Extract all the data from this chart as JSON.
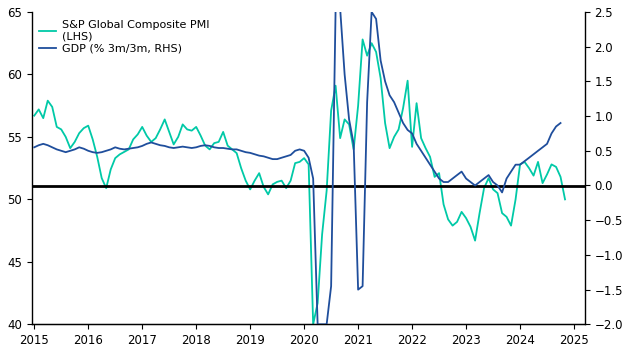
{
  "pmi_color": "#00C9A7",
  "gdp_color": "#1F4E9C",
  "hline_color": "#000000",
  "hline_y_lhs": 51.1,
  "lhs_ylim": [
    40,
    65
  ],
  "rhs_ylim": [
    -2.0,
    2.5
  ],
  "lhs_yticks": [
    40,
    45,
    50,
    55,
    60,
    65
  ],
  "rhs_yticks": [
    -2.0,
    -1.5,
    -1.0,
    -0.5,
    0.0,
    0.5,
    1.0,
    1.5,
    2.0,
    2.5
  ],
  "xlim_start": 2014.95,
  "xlim_end": 2025.2,
  "legend_pmi": "S&P Global Composite PMI\n(LHS)",
  "legend_gdp": "GDP (% 3m/3m, RHS)",
  "pmi_dates": [
    2015.0,
    2015.083,
    2015.167,
    2015.25,
    2015.333,
    2015.417,
    2015.5,
    2015.583,
    2015.667,
    2015.75,
    2015.833,
    2015.917,
    2016.0,
    2016.083,
    2016.167,
    2016.25,
    2016.333,
    2016.417,
    2016.5,
    2016.583,
    2016.667,
    2016.75,
    2016.833,
    2016.917,
    2017.0,
    2017.083,
    2017.167,
    2017.25,
    2017.333,
    2017.417,
    2017.5,
    2017.583,
    2017.667,
    2017.75,
    2017.833,
    2017.917,
    2018.0,
    2018.083,
    2018.167,
    2018.25,
    2018.333,
    2018.417,
    2018.5,
    2018.583,
    2018.667,
    2018.75,
    2018.833,
    2018.917,
    2019.0,
    2019.083,
    2019.167,
    2019.25,
    2019.333,
    2019.417,
    2019.5,
    2019.583,
    2019.667,
    2019.75,
    2019.833,
    2019.917,
    2020.0,
    2020.083,
    2020.167,
    2020.25,
    2020.333,
    2020.417,
    2020.5,
    2020.583,
    2020.667,
    2020.75,
    2020.833,
    2020.917,
    2021.0,
    2021.083,
    2021.167,
    2021.25,
    2021.333,
    2021.417,
    2021.5,
    2021.583,
    2021.667,
    2021.75,
    2021.833,
    2021.917,
    2022.0,
    2022.083,
    2022.167,
    2022.25,
    2022.333,
    2022.417,
    2022.5,
    2022.583,
    2022.667,
    2022.75,
    2022.833,
    2022.917,
    2023.0,
    2023.083,
    2023.167,
    2023.25,
    2023.333,
    2023.417,
    2023.5,
    2023.583,
    2023.667,
    2023.75,
    2023.833,
    2023.917,
    2024.0,
    2024.083,
    2024.167,
    2024.25,
    2024.333,
    2024.417,
    2024.5,
    2024.583,
    2024.667,
    2024.75,
    2024.833
  ],
  "pmi_values": [
    56.7,
    57.2,
    56.5,
    57.9,
    57.4,
    55.8,
    55.6,
    55.0,
    54.1,
    54.6,
    55.3,
    55.7,
    55.9,
    54.8,
    53.4,
    51.7,
    50.9,
    52.4,
    53.3,
    53.6,
    53.8,
    54.0,
    54.8,
    55.2,
    55.8,
    55.1,
    54.6,
    54.9,
    55.6,
    56.4,
    55.4,
    54.4,
    55.0,
    56.0,
    55.6,
    55.5,
    55.8,
    55.1,
    54.3,
    54.0,
    54.5,
    54.6,
    55.4,
    54.3,
    54.0,
    53.7,
    52.5,
    51.5,
    50.8,
    51.5,
    52.1,
    51.0,
    50.4,
    51.2,
    51.4,
    51.5,
    50.9,
    51.5,
    52.9,
    53.0,
    53.3,
    52.8,
    40.0,
    41.7,
    47.2,
    50.7,
    57.1,
    59.1,
    54.9,
    56.4,
    56.0,
    54.0,
    57.5,
    62.8,
    61.5,
    62.5,
    61.8,
    59.7,
    56.1,
    54.1,
    55.0,
    55.6,
    57.3,
    59.5,
    54.2,
    57.7,
    54.9,
    54.1,
    53.4,
    51.8,
    52.1,
    49.6,
    48.4,
    47.9,
    48.2,
    49.0,
    48.5,
    47.8,
    46.7,
    48.9,
    50.9,
    51.7,
    50.8,
    50.5,
    48.9,
    48.6,
    47.9,
    50.0,
    52.8,
    53.0,
    52.5,
    51.9,
    53.0,
    51.3,
    52.0,
    52.8,
    52.6,
    51.8,
    50.0
  ],
  "gdp_dates": [
    2015.0,
    2015.083,
    2015.167,
    2015.25,
    2015.333,
    2015.417,
    2015.5,
    2015.583,
    2015.667,
    2015.75,
    2015.833,
    2015.917,
    2016.0,
    2016.083,
    2016.167,
    2016.25,
    2016.333,
    2016.417,
    2016.5,
    2016.583,
    2016.667,
    2016.75,
    2016.833,
    2016.917,
    2017.0,
    2017.083,
    2017.167,
    2017.25,
    2017.333,
    2017.417,
    2017.5,
    2017.583,
    2017.667,
    2017.75,
    2017.833,
    2017.917,
    2018.0,
    2018.083,
    2018.167,
    2018.25,
    2018.333,
    2018.417,
    2018.5,
    2018.583,
    2018.667,
    2018.75,
    2018.833,
    2018.917,
    2019.0,
    2019.083,
    2019.167,
    2019.25,
    2019.333,
    2019.417,
    2019.5,
    2019.583,
    2019.667,
    2019.75,
    2019.833,
    2019.917,
    2020.0,
    2020.083,
    2020.167,
    2020.25,
    2020.333,
    2020.417,
    2020.5,
    2020.583,
    2020.667,
    2020.75,
    2020.833,
    2020.917,
    2021.0,
    2021.083,
    2021.167,
    2021.25,
    2021.333,
    2021.417,
    2021.5,
    2021.583,
    2021.667,
    2021.75,
    2021.833,
    2021.917,
    2022.0,
    2022.083,
    2022.167,
    2022.25,
    2022.333,
    2022.417,
    2022.5,
    2022.583,
    2022.667,
    2022.75,
    2022.833,
    2022.917,
    2023.0,
    2023.083,
    2023.167,
    2023.25,
    2023.333,
    2023.417,
    2023.5,
    2023.583,
    2023.667,
    2023.75,
    2023.833,
    2023.917,
    2024.0,
    2024.083,
    2024.167,
    2024.25,
    2024.333,
    2024.417,
    2024.5,
    2024.583,
    2024.667,
    2024.75
  ],
  "gdp_values": [
    0.55,
    0.58,
    0.6,
    0.58,
    0.55,
    0.52,
    0.5,
    0.48,
    0.5,
    0.52,
    0.55,
    0.53,
    0.5,
    0.48,
    0.47,
    0.48,
    0.5,
    0.52,
    0.55,
    0.53,
    0.52,
    0.53,
    0.54,
    0.55,
    0.57,
    0.6,
    0.62,
    0.6,
    0.58,
    0.57,
    0.55,
    0.54,
    0.55,
    0.56,
    0.55,
    0.54,
    0.55,
    0.57,
    0.58,
    0.57,
    0.55,
    0.54,
    0.54,
    0.53,
    0.52,
    0.52,
    0.5,
    0.48,
    0.47,
    0.45,
    0.43,
    0.42,
    0.4,
    0.38,
    0.38,
    0.4,
    0.42,
    0.44,
    0.5,
    0.52,
    0.5,
    0.4,
    0.1,
    -2.0,
    -2.0,
    -2.0,
    -1.45,
    2.55,
    2.55,
    1.6,
    0.95,
    0.6,
    -1.5,
    -1.45,
    1.2,
    2.5,
    2.4,
    1.8,
    1.5,
    1.3,
    1.2,
    1.05,
    0.9,
    0.8,
    0.75,
    0.6,
    0.5,
    0.4,
    0.3,
    0.2,
    0.1,
    0.05,
    0.05,
    0.1,
    0.15,
    0.2,
    0.1,
    0.05,
    0.0,
    0.05,
    0.1,
    0.15,
    0.05,
    0.0,
    -0.1,
    0.1,
    0.2,
    0.3,
    0.3,
    0.35,
    0.4,
    0.45,
    0.5,
    0.55,
    0.6,
    0.75,
    0.85,
    0.9
  ]
}
